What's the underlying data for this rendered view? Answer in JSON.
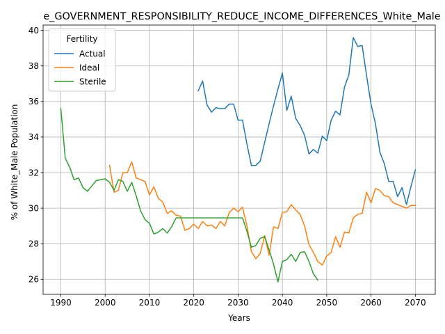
{
  "chart_data": {
    "type": "line",
    "title": "e_GOVERNMENT_RESPONSIBILITY_REDUCE_INCOME_DIFFERENCES_White_Male",
    "xlabel": "Years",
    "ylabel": "% of White_Male Population",
    "xlim": [
      1986,
      2074.5
    ],
    "ylim": [
      25.15,
      40.3
    ],
    "xticks": [
      1990,
      2000,
      2010,
      2020,
      2030,
      2040,
      2050,
      2060,
      2070
    ],
    "yticks": [
      26,
      28,
      30,
      32,
      34,
      36,
      38,
      40
    ],
    "grid": true,
    "legend": {
      "title": "Fertility",
      "placement": "upper-left"
    },
    "series": [
      {
        "name": "Actual",
        "color": "#1f77b4",
        "points": [
          [
            2021,
            36.6
          ],
          [
            2022,
            37.15
          ],
          [
            2023,
            35.8
          ],
          [
            2024,
            35.4
          ],
          [
            2025,
            35.65
          ],
          [
            2026,
            35.6
          ],
          [
            2027,
            35.6
          ],
          [
            2028,
            35.85
          ],
          [
            2029,
            35.85
          ],
          [
            2030,
            34.95
          ],
          [
            2031,
            34.95
          ],
          [
            2032,
            33.6
          ],
          [
            2033,
            32.4
          ],
          [
            2034,
            32.4
          ],
          [
            2035,
            32.65
          ],
          [
            2036,
            33.7
          ],
          [
            2037,
            34.75
          ],
          [
            2038,
            35.75
          ],
          [
            2039,
            36.7
          ],
          [
            2040,
            37.6
          ],
          [
            2041,
            35.5
          ],
          [
            2042,
            36.3
          ],
          [
            2043,
            35.05
          ],
          [
            2044,
            34.65
          ],
          [
            2045,
            34.1
          ],
          [
            2046,
            33.05
          ],
          [
            2047,
            33.3
          ],
          [
            2048,
            33.1
          ],
          [
            2049,
            34.05
          ],
          [
            2050,
            33.8
          ],
          [
            2051,
            34.95
          ],
          [
            2052,
            35.45
          ],
          [
            2053,
            35.25
          ],
          [
            2054,
            36.8
          ],
          [
            2055,
            37.5
          ],
          [
            2056,
            39.6
          ],
          [
            2057,
            39.1
          ],
          [
            2058,
            39.15
          ],
          [
            2059,
            37.45
          ],
          [
            2060,
            35.85
          ],
          [
            2061,
            34.75
          ],
          [
            2062,
            33.15
          ],
          [
            2063,
            32.5
          ],
          [
            2064,
            31.5
          ],
          [
            2065,
            31.5
          ],
          [
            2066,
            30.65
          ],
          [
            2067,
            31.15
          ],
          [
            2068,
            30.2
          ],
          [
            2069,
            31.2
          ],
          [
            2070,
            32.15
          ]
        ]
      },
      {
        "name": "Ideal",
        "color": "#ff7f0e",
        "points": [
          [
            2001,
            32.4
          ],
          [
            2002,
            30.9
          ],
          [
            2003,
            31.0
          ],
          [
            2004,
            32.0
          ],
          [
            2005,
            32.0
          ],
          [
            2006,
            32.6
          ],
          [
            2007,
            31.7
          ],
          [
            2008,
            31.6
          ],
          [
            2009,
            31.5
          ],
          [
            2010,
            30.75
          ],
          [
            2011,
            31.2
          ],
          [
            2012,
            30.55
          ],
          [
            2013,
            30.35
          ],
          [
            2014,
            29.7
          ],
          [
            2015,
            29.85
          ],
          [
            2016,
            29.6
          ],
          [
            2017,
            29.55
          ],
          [
            2018,
            28.75
          ],
          [
            2019,
            28.85
          ],
          [
            2020,
            29.1
          ],
          [
            2021,
            28.85
          ],
          [
            2022,
            29.25
          ],
          [
            2023,
            29.0
          ],
          [
            2024,
            29.05
          ],
          [
            2025,
            28.85
          ],
          [
            2026,
            29.25
          ],
          [
            2027,
            29.0
          ],
          [
            2028,
            29.75
          ],
          [
            2029,
            30.0
          ],
          [
            2030,
            29.8
          ],
          [
            2031,
            30.05
          ],
          [
            2032,
            29.0
          ],
          [
            2033,
            27.55
          ],
          [
            2034,
            27.15
          ],
          [
            2035,
            27.45
          ],
          [
            2036,
            28.45
          ],
          [
            2037,
            27.35
          ],
          [
            2038,
            28.95
          ],
          [
            2039,
            28.85
          ],
          [
            2040,
            29.75
          ],
          [
            2041,
            29.8
          ],
          [
            2042,
            30.2
          ],
          [
            2043,
            29.9
          ],
          [
            2044,
            29.65
          ],
          [
            2045,
            29.0
          ],
          [
            2046,
            27.95
          ],
          [
            2047,
            27.5
          ],
          [
            2048,
            27.0
          ],
          [
            2049,
            26.8
          ],
          [
            2050,
            27.3
          ],
          [
            2051,
            27.5
          ],
          [
            2052,
            28.4
          ],
          [
            2053,
            27.8
          ],
          [
            2054,
            28.65
          ],
          [
            2055,
            28.6
          ],
          [
            2056,
            29.45
          ],
          [
            2057,
            29.65
          ],
          [
            2058,
            29.7
          ],
          [
            2059,
            30.9
          ],
          [
            2060,
            30.3
          ],
          [
            2061,
            31.1
          ],
          [
            2062,
            31.0
          ],
          [
            2063,
            30.7
          ],
          [
            2064,
            30.65
          ],
          [
            2065,
            30.3
          ],
          [
            2066,
            30.2
          ],
          [
            2067,
            30.1
          ],
          [
            2068,
            30.0
          ],
          [
            2069,
            30.15
          ],
          [
            2070,
            30.15
          ]
        ]
      },
      {
        "name": "Sterile",
        "color": "#2ca02c",
        "points": [
          [
            1990,
            35.6
          ],
          [
            1991,
            32.8
          ],
          [
            1992,
            32.3
          ],
          [
            1993,
            31.6
          ],
          [
            1994,
            31.7
          ],
          [
            1995,
            31.15
          ],
          [
            1996,
            30.95
          ],
          [
            1997,
            31.25
          ],
          [
            1998,
            31.55
          ],
          [
            1999,
            31.6
          ],
          [
            2000,
            31.65
          ],
          [
            2001,
            31.45
          ],
          [
            2002,
            31.0
          ],
          [
            2003,
            31.6
          ],
          [
            2004,
            31.5
          ],
          [
            2005,
            30.95
          ],
          [
            2006,
            31.45
          ],
          [
            2007,
            30.7
          ],
          [
            2008,
            29.85
          ],
          [
            2009,
            29.35
          ],
          [
            2010,
            29.15
          ],
          [
            2011,
            28.55
          ],
          [
            2012,
            28.65
          ],
          [
            2013,
            28.85
          ],
          [
            2014,
            28.6
          ],
          [
            2015,
            28.95
          ],
          [
            2016,
            29.45
          ],
          [
            2017,
            29.45
          ],
          [
            2018,
            29.45
          ],
          [
            2019,
            29.45
          ],
          [
            2020,
            29.45
          ],
          [
            2021,
            29.45
          ],
          [
            2022,
            29.45
          ],
          [
            2023,
            29.45
          ],
          [
            2024,
            29.45
          ],
          [
            2025,
            29.45
          ],
          [
            2026,
            29.45
          ],
          [
            2027,
            29.45
          ],
          [
            2028,
            29.45
          ],
          [
            2029,
            29.45
          ],
          [
            2030,
            29.45
          ],
          [
            2031,
            29.45
          ],
          [
            2032,
            28.7
          ],
          [
            2033,
            27.8
          ],
          [
            2034,
            27.9
          ],
          [
            2035,
            28.3
          ],
          [
            2036,
            28.4
          ],
          [
            2037,
            27.65
          ],
          [
            2038,
            26.85
          ],
          [
            2039,
            25.85
          ],
          [
            2040,
            27.0
          ],
          [
            2041,
            27.1
          ],
          [
            2042,
            27.4
          ],
          [
            2043,
            27.0
          ],
          [
            2044,
            27.5
          ],
          [
            2045,
            27.55
          ],
          [
            2046,
            27.0
          ],
          [
            2047,
            26.3
          ],
          [
            2048,
            25.95
          ]
        ]
      }
    ]
  }
}
